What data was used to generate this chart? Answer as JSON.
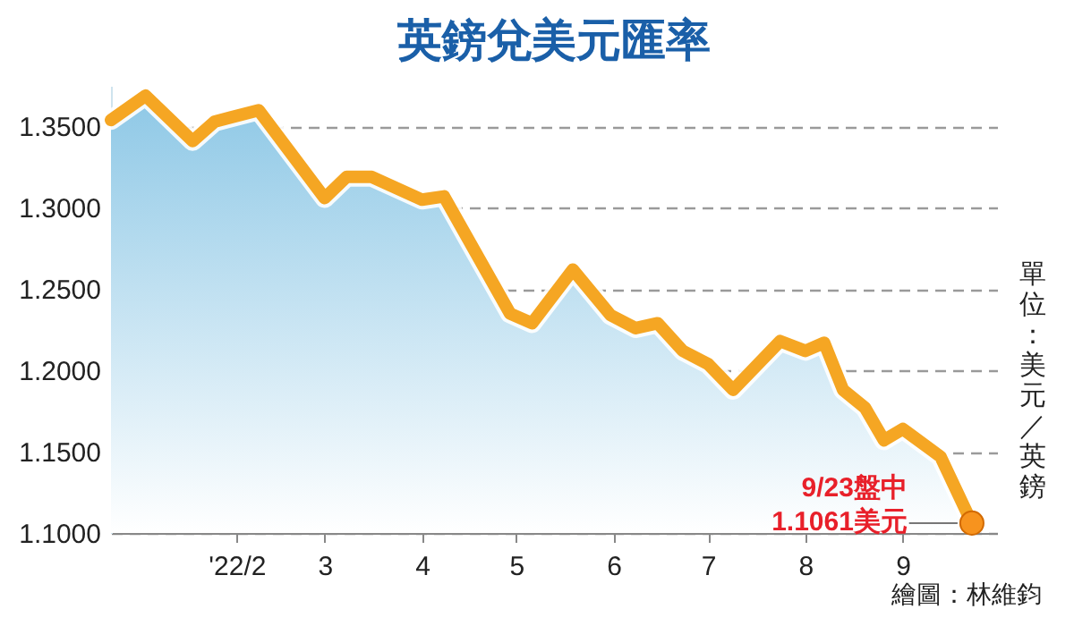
{
  "chart_data": {
    "type": "area",
    "title": "英鎊兌美元匯率",
    "ylabel": "單位：美元／英鎊",
    "x": [
      "2021-12-23",
      "2022-01-03",
      "2022-01-18",
      "2022-01-25",
      "2022-02-08",
      "2022-03-01",
      "2022-03-08",
      "2022-03-16",
      "2022-04-01",
      "2022-04-08",
      "2022-04-29",
      "2022-05-06",
      "2022-05-19",
      "2022-05-31",
      "2022-06-08",
      "2022-06-15",
      "2022-06-23",
      "2022-07-01",
      "2022-07-09",
      "2022-07-24",
      "2022-08-01",
      "2022-08-07",
      "2022-08-13",
      "2022-08-20",
      "2022-08-26",
      "2022-09-01",
      "2022-09-13",
      "2022-09-23"
    ],
    "series": [
      {
        "color": "#f5a623",
        "values": [
          1.354,
          1.369,
          1.341,
          1.353,
          1.36,
          1.306,
          1.319,
          1.319,
          1.305,
          1.307,
          1.235,
          1.229,
          1.262,
          1.234,
          1.226,
          1.229,
          1.212,
          1.204,
          1.188,
          1.218,
          1.212,
          1.217,
          1.188,
          1.177,
          1.157,
          1.164,
          1.147,
          1.1061
        ]
      }
    ],
    "xlim": [
      "2021-12-23",
      "2022-10-01"
    ],
    "xticks": [
      {
        "value": "2022-02-01",
        "label": "'22/2"
      },
      {
        "value": "2022-03-01",
        "label": "3"
      },
      {
        "value": "2022-04-01",
        "label": "4"
      },
      {
        "value": "2022-05-01",
        "label": "5"
      },
      {
        "value": "2022-06-01",
        "label": "6"
      },
      {
        "value": "2022-07-01",
        "label": "7"
      },
      {
        "value": "2022-08-01",
        "label": "8"
      },
      {
        "value": "2022-09-01",
        "label": "9"
      }
    ],
    "ylim": [
      1.1,
      1.375
    ],
    "yticks": [
      {
        "value": 1.1,
        "label": "1.1000"
      },
      {
        "value": 1.15,
        "label": "1.1500"
      },
      {
        "value": 1.2,
        "label": "1.2000"
      },
      {
        "value": 1.25,
        "label": "1.2500"
      },
      {
        "value": 1.3,
        "label": "1.3000"
      },
      {
        "value": 1.35,
        "label": "1.3500"
      }
    ],
    "grid": "y",
    "line_style": "solid",
    "annotations": [
      {
        "text": "9/23盤中\n1.1061美元",
        "x": "2022-09-23",
        "y": 1.1061
      },
      "繪圖：林維鈞"
    ]
  }
}
